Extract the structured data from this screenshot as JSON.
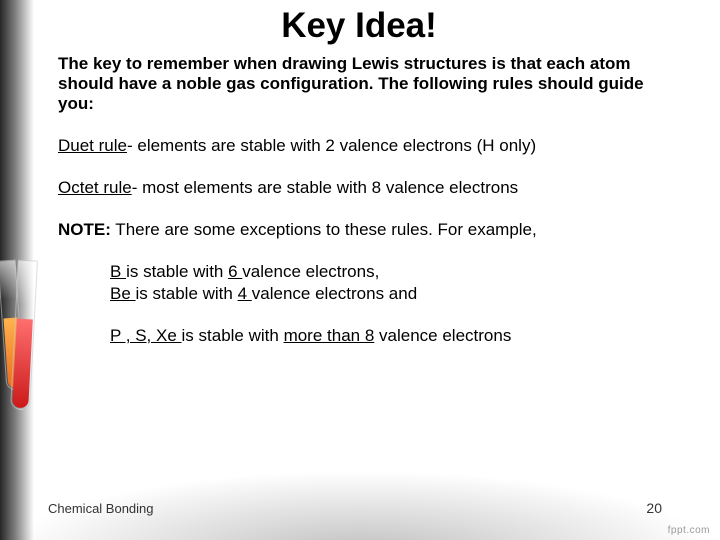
{
  "title": "Key Idea!",
  "intro": "The key to remember when drawing Lewis structures is that each atom should have a noble gas configuration.  The following rules should guide you:",
  "duet": {
    "label": "Duet rule",
    "text": "- elements are stable with 2 valence electrons (H only)"
  },
  "octet": {
    "label": "Octet rule",
    "text": "- most elements are stable with 8 valence electrons"
  },
  "note": {
    "label": "NOTE:",
    "text": "  There are some exceptions to these rules.  For example,"
  },
  "ex1": {
    "l1a": " B ",
    "l1b": " is stable with ",
    "l1c": " 6 ",
    "l1d": " valence electrons,",
    "l2a": " Be ",
    "l2b": " is stable with ",
    "l2c": " 4 ",
    "l2d": " valence electrons and"
  },
  "ex2": {
    "a": " P , S, Xe ",
    "b": " is stable with ",
    "c": "more than 8",
    "d": " valence electrons"
  },
  "footer": {
    "left": "Chemical Bonding",
    "page": "20",
    "logo": "fppt.com"
  },
  "colors": {
    "text": "#000000",
    "tube_orange_top": "#ffb34d",
    "tube_orange_bot": "#e96c20",
    "tube_red_top": "#ff6f6f",
    "tube_red_bot": "#cc1a1a"
  }
}
